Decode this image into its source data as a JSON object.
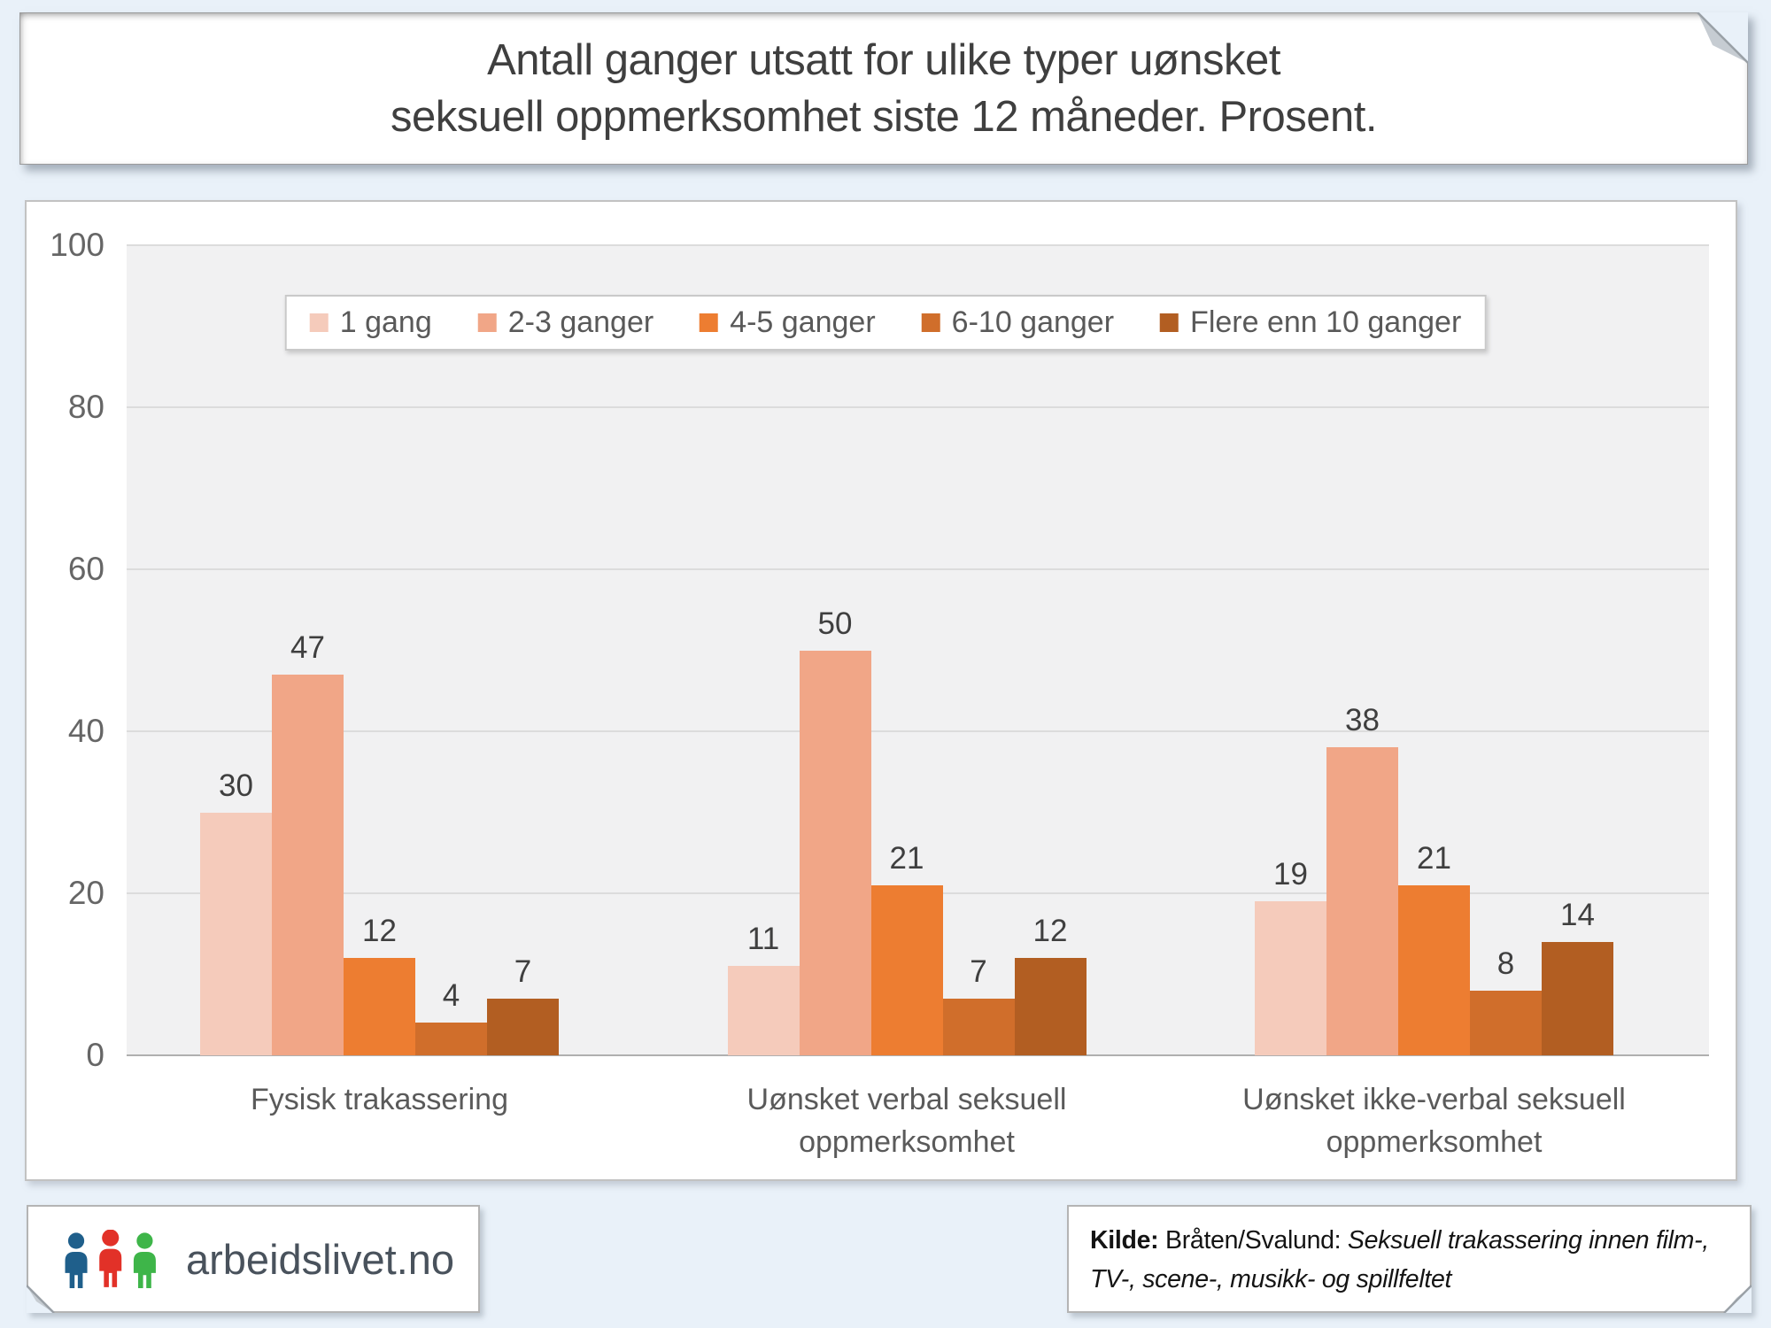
{
  "page": {
    "background": "#E9F1F9"
  },
  "title": {
    "line1": "Antall ganger utsatt for ulike typer uønsket",
    "line2": "seksuell oppmerksomhet siste 12 måneder. Prosent."
  },
  "chart_data": {
    "type": "bar",
    "title": "Antall ganger utsatt for ulike typer uønsket seksuell oppmerksomhet siste 12 måneder. Prosent.",
    "categories": [
      "Fysisk trakassering",
      "Uønsket verbal seksuell oppmerksomhet",
      "Uønsket ikke-verbal seksuell oppmerksomhet"
    ],
    "series": [
      {
        "name": "1 gang",
        "color": "#F5CBBB",
        "values": [
          30,
          11,
          19
        ]
      },
      {
        "name": "2-3 ganger",
        "color": "#F1A687",
        "values": [
          47,
          50,
          38
        ]
      },
      {
        "name": "4-5 ganger",
        "color": "#ED7D31",
        "values": [
          12,
          21,
          21
        ]
      },
      {
        "name": "6-10 ganger",
        "color": "#D06E2B",
        "values": [
          4,
          7,
          8
        ]
      },
      {
        "name": "Flere enn 10 ganger",
        "color": "#B25E22",
        "values": [
          7,
          12,
          14
        ]
      }
    ],
    "xlabel": "",
    "ylabel": "",
    "ylim": [
      0,
      100
    ],
    "yticks": [
      0,
      20,
      40,
      60,
      80,
      100
    ],
    "grid": true,
    "legend_position": "top-center",
    "plot_background": "#F1F1F2",
    "gridline_color": "#DCDCDC",
    "label_color": "#3F3F3F"
  },
  "footer": {
    "logo_text": "arbeidslivet.no",
    "logo_colors": {
      "person1": "#1F5F8B",
      "person2": "#E23128",
      "person3": "#3EB549"
    },
    "source": {
      "label": "Kilde:",
      "authors": " Bråten/Svalund: ",
      "work": "Seksuell trakassering innen film-, TV-, scene-, musikk- og spillfeltet"
    }
  }
}
